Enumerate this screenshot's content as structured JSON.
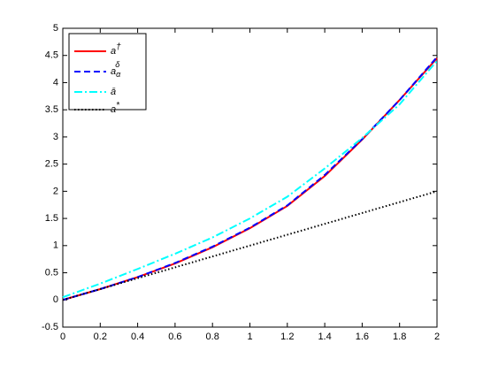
{
  "chart_data": {
    "type": "line",
    "x": [
      0,
      0.2,
      0.4,
      0.6,
      0.8,
      1.0,
      1.2,
      1.4,
      1.6,
      1.8,
      2.0
    ],
    "series": [
      {
        "name": "a",
        "sup": "†",
        "color": "#ff0000",
        "dash": "solid",
        "values": [
          0,
          0.2,
          0.42,
          0.67,
          0.97,
          1.32,
          1.73,
          2.28,
          2.95,
          3.68,
          4.45
        ]
      },
      {
        "name": "a",
        "sub": "α",
        "sup": "δ",
        "color": "#0000ff",
        "dash": "dashed",
        "values": [
          0,
          0.2,
          0.42,
          0.68,
          0.98,
          1.33,
          1.74,
          2.3,
          2.96,
          3.68,
          4.47
        ]
      },
      {
        "name": "ā",
        "color": "#00ffff",
        "dash": "dashdot",
        "values": [
          0.05,
          0.3,
          0.57,
          0.85,
          1.15,
          1.5,
          1.9,
          2.42,
          2.98,
          3.6,
          4.4
        ]
      },
      {
        "name": "a",
        "sup": "*",
        "color": "#000000",
        "dash": "dotted",
        "values": [
          0,
          0.2,
          0.4,
          0.6,
          0.8,
          1.0,
          1.2,
          1.4,
          1.6,
          1.8,
          2.0
        ]
      }
    ],
    "xlim": [
      0,
      2
    ],
    "xticks": [
      0,
      0.2,
      0.4,
      0.6,
      0.8,
      1,
      1.2,
      1.4,
      1.6,
      1.8,
      2
    ],
    "ylim": [
      -0.5,
      5
    ],
    "yticks": [
      -0.5,
      0,
      0.5,
      1,
      1.5,
      2,
      2.5,
      3,
      3.5,
      4,
      4.5,
      5
    ],
    "grid": false,
    "legend": "northwest"
  }
}
